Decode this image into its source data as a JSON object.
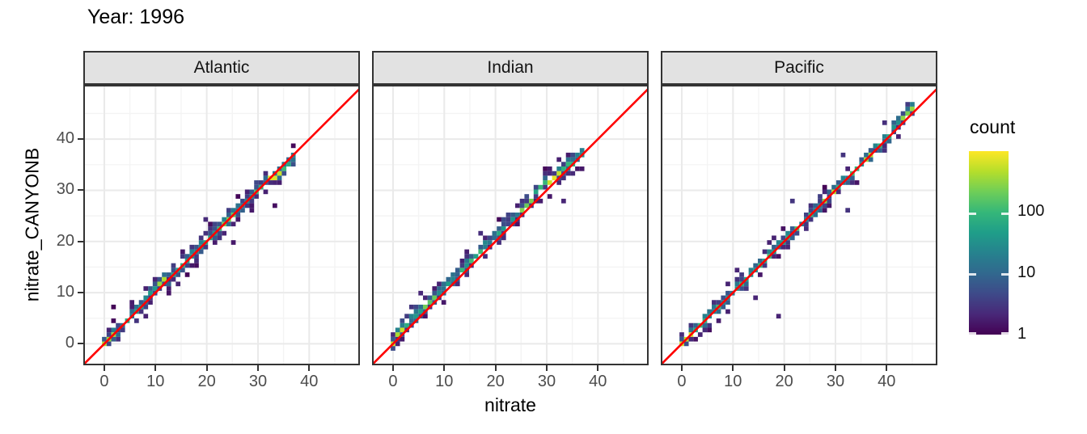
{
  "chart_data": {
    "type": "heatmap",
    "subtype": "binned-2d-density-scatter (geom_bin2d), faceted",
    "title": "Year: 1996",
    "xlabel": "nitrate",
    "ylabel": "nitrate_CANYONB",
    "x_ticks": [
      0,
      10,
      20,
      30,
      40
    ],
    "y_ticks": [
      0,
      10,
      20,
      30,
      40
    ],
    "minor_gridlines": [
      5,
      15,
      25,
      35,
      45
    ],
    "xlim": [
      -4.1,
      49.9
    ],
    "ylim": [
      -4.2,
      50.6
    ],
    "binwidth": 0.9,
    "identity_line": {
      "slope": 1,
      "intercept": 0,
      "color": "#FF0000"
    },
    "legend": {
      "title": "count",
      "scale": "log10",
      "limits": [
        1,
        1000
      ],
      "breaks": [
        100,
        10,
        1
      ],
      "tick_labels": [
        "100",
        "10",
        "1"
      ],
      "palette": "viridis",
      "gradient_stops": [
        [
          0.0,
          "#440154"
        ],
        [
          0.111,
          "#482878"
        ],
        [
          0.222,
          "#3e4a89"
        ],
        [
          0.333,
          "#31688e"
        ],
        [
          0.444,
          "#26828e"
        ],
        [
          0.556,
          "#1f9e89"
        ],
        [
          0.667,
          "#35b779"
        ],
        [
          0.778,
          "#6ece58"
        ],
        [
          0.889,
          "#b5de2b"
        ],
        [
          1.0,
          "#fde725"
        ]
      ]
    },
    "facets": [
      {
        "label": "Atlantic",
        "x_end": 37,
        "relation": "y ~ x along 1:1 line, slight under-estimate above 33",
        "bias_points": [
          [
            0,
            0
          ],
          [
            6,
            0.2
          ],
          [
            10,
            0.6
          ],
          [
            16,
            0.2
          ],
          [
            22,
            0.3
          ],
          [
            27,
            0.3
          ],
          [
            31,
            -0.2
          ],
          [
            35,
            -0.7
          ],
          [
            37,
            -1.0
          ]
        ],
        "spread": 1.0,
        "widen": [
          [
            10,
            0.7
          ]
        ],
        "base_logc": [
          0.9,
          1.2
        ],
        "hotspots": [
          [
            0.5,
            500
          ],
          [
            12,
            500
          ],
          [
            24.5,
            250
          ],
          [
            33.5,
            900
          ]
        ],
        "outliers": [
          [
            1.9,
            7.4
          ],
          [
            15.6,
            18.3
          ],
          [
            20.2,
            24.1
          ],
          [
            24.9,
            19.6
          ],
          [
            33.5,
            26.6
          ],
          [
            16.3,
            13.6
          ],
          [
            13.0,
            9.8
          ]
        ]
      },
      {
        "label": "Indian",
        "x_end": 37,
        "relation": "cloud sits ~0.5-1.5 units above 1:1 line through mid-range",
        "bias_points": [
          [
            0,
            0.3
          ],
          [
            4,
            1.0
          ],
          [
            9,
            1.1
          ],
          [
            14,
            0.7
          ],
          [
            19,
            0.7
          ],
          [
            24,
            1.0
          ],
          [
            29,
            1.5
          ],
          [
            32,
            1.2
          ],
          [
            35,
            0.4
          ],
          [
            37,
            0.1
          ]
        ],
        "spread": 1.15,
        "widen": [
          [
            9,
            0.6
          ],
          [
            29,
            0.8
          ]
        ],
        "base_logc": [
          0.9,
          1.2
        ],
        "hotspots": [
          [
            0.5,
            600
          ],
          [
            7,
            250
          ],
          [
            26,
            300
          ],
          [
            31.5,
            850
          ]
        ],
        "outliers": [
          [
            33.5,
            27.7
          ],
          [
            5.4,
            9.5
          ],
          [
            17.5,
            21.6
          ],
          [
            3.2,
            6.8
          ]
        ]
      },
      {
        "label": "Pacific",
        "x_end": 45,
        "relation": "tight along 1:1 line out to ~45",
        "bias_points": [
          [
            0,
            0
          ],
          [
            38,
            0.2
          ],
          [
            43,
            0.6
          ],
          [
            45,
            0.5
          ]
        ],
        "spread": 0.85,
        "widen": [
          [
            1,
            0.6
          ],
          [
            13,
            0.3
          ]
        ],
        "base_logc": [
          1.1,
          1.1
        ],
        "hotspots": [
          [
            0.8,
            700
          ],
          [
            28.5,
            450
          ],
          [
            37,
            450
          ],
          [
            44,
            400
          ]
        ],
        "outliers": [
          [
            18.5,
            5.5
          ],
          [
            21.8,
            28.2
          ],
          [
            32.6,
            25.9
          ],
          [
            31.5,
            37.3
          ],
          [
            14.2,
            8.6
          ],
          [
            10.4,
            14.8
          ],
          [
            39.6,
            43.4
          ]
        ]
      }
    ],
    "colors": {
      "identity_line": "#FF0000",
      "panel_background": "#FFFFFF",
      "panel_border": "#333333",
      "grid_major": "#eaeaea",
      "grid_minor": "#f4f4f4",
      "strip_fill": "#e2e2e2",
      "strip_border": "#333333",
      "tick_label": "#4d4d4d",
      "tick_mark": "#333333"
    }
  }
}
